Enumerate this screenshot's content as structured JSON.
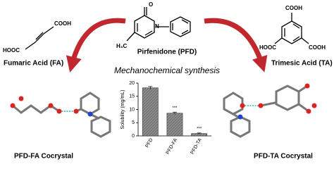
{
  "structures": {
    "pfd": {
      "name": "Pirfenidone (PFD)",
      "atoms": [
        "O",
        "N",
        "H₃C"
      ]
    },
    "fa": {
      "name": "Fumaric Acid (FA)",
      "groups": [
        "HOOC",
        "COOH"
      ]
    },
    "ta": {
      "name": "Trimesic Acid (TA)",
      "groups": [
        "COOH",
        "HOOC",
        "COOH"
      ]
    }
  },
  "process": "Mechanochemical synthesis",
  "products": [
    "PFD-FA Cocrystal",
    "PFD-TA Cocrystal"
  ],
  "chart_data": {
    "type": "bar",
    "y_label": "Solubility (mg/mL)",
    "categories": [
      "PFD",
      "PFD-FA",
      "PFD-TA"
    ],
    "values": [
      18.2,
      8.6,
      0.9
    ],
    "errors": [
      0.5,
      0.4,
      0.2
    ],
    "annotations": [
      null,
      "***",
      "***"
    ],
    "color": "#8c8c8c",
    "ylim": [
      0,
      20
    ],
    "yticks": [
      0,
      5,
      10,
      15,
      20
    ]
  }
}
